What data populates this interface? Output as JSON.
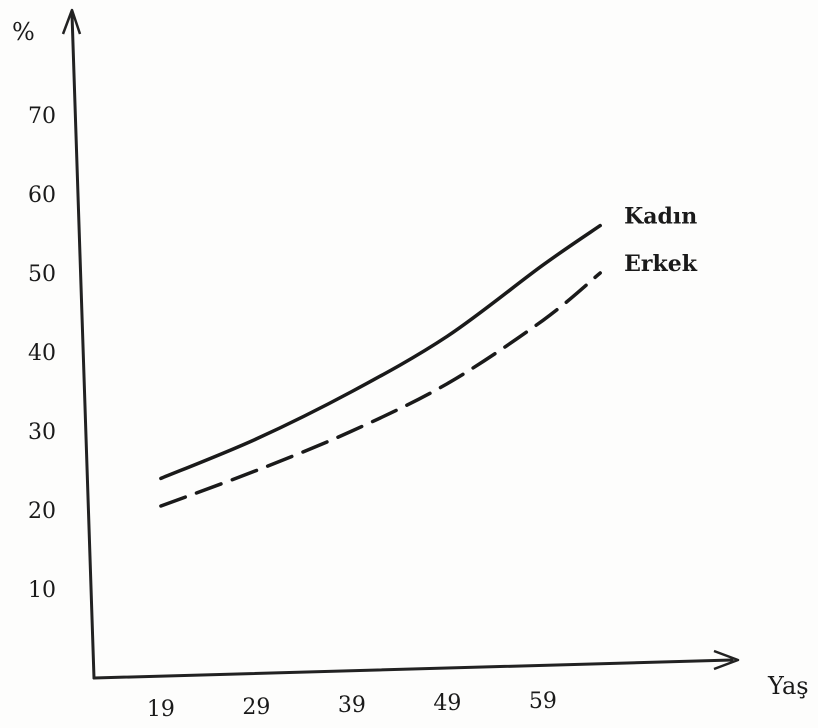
{
  "chart_data": {
    "type": "line",
    "title": "",
    "ylabel": "%",
    "xlabel": "Yaş",
    "x_ticks": [
      19,
      29,
      39,
      49,
      59
    ],
    "y_ticks": [
      10,
      20,
      30,
      40,
      50,
      60,
      70
    ],
    "xlim": [
      12,
      78
    ],
    "ylim": [
      0,
      78
    ],
    "grid": false,
    "legend": "none",
    "colors": {
      "ink": "#1a1a1a",
      "axis": "#222222"
    },
    "series": [
      {
        "name": "Kadın",
        "style": "solid",
        "x": [
          19,
          29,
          39,
          49,
          59,
          65
        ],
        "y": [
          24,
          29,
          35,
          42,
          51,
          56
        ]
      },
      {
        "name": "Erkek",
        "style": "dashed",
        "x": [
          19,
          29,
          39,
          49,
          59,
          65
        ],
        "y": [
          20.5,
          25,
          30,
          36,
          44,
          50
        ]
      }
    ]
  }
}
